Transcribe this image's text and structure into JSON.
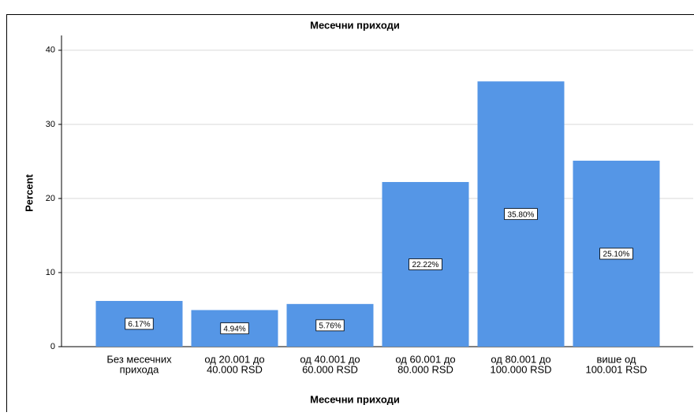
{
  "chart_data": {
    "type": "bar",
    "title": "Месечни приходи",
    "x_label": "Месечни приходи",
    "y_label": "Percent",
    "categories": [
      [
        "Без месечних",
        "прихода"
      ],
      [
        "од 20.001 до",
        "40.000 RSD"
      ],
      [
        "од 40.001 до",
        "60.000 RSD"
      ],
      [
        "од 60.001 до",
        "80.000 RSD"
      ],
      [
        "од 80.001 до",
        "100.000 RSD"
      ],
      [
        "више од",
        "100.001 RSD"
      ]
    ],
    "values": [
      6.17,
      4.94,
      5.76,
      22.22,
      35.8,
      25.1
    ],
    "value_labels": [
      "6.17%",
      "4.94%",
      "5.76%",
      "22.22%",
      "35.80%",
      "25.10%"
    ],
    "color": "#5596e6",
    "ylim": [
      0,
      42
    ],
    "yticks": [
      0,
      10,
      20,
      30,
      40
    ],
    "grid": true
  }
}
